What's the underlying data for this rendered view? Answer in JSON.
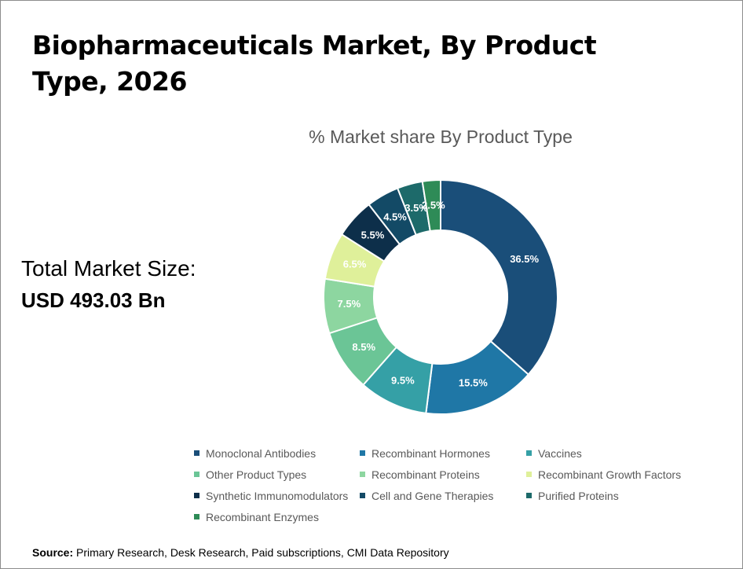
{
  "header": {
    "title": "Biopharmaceuticals Market, By Product Type, 2026"
  },
  "summary": {
    "total_label": "Total Market Size:",
    "total_value": "USD 493.03 Bn"
  },
  "footer": {
    "source_label": "Source:",
    "source_text": " Primary Research, Desk Research, Paid subscriptions, CMI Data Repository"
  },
  "chart_data": {
    "type": "pie",
    "subtitle": "% Market share By Product Type",
    "donut": true,
    "legend_position": "bottom",
    "categories": [
      "Monoclonal Antibodies",
      "Recombinant Hormones",
      "Vaccines",
      "Other Product Types",
      "Recombinant Proteins",
      "Recombinant Growth Factors",
      "Synthetic Immunomodulators",
      "Cell and Gene Therapies",
      "Purified Proteins",
      "Recombinant Enzymes"
    ],
    "values": [
      36.5,
      15.5,
      9.5,
      8.5,
      7.5,
      6.5,
      5.5,
      4.5,
      3.5,
      2.5
    ],
    "labels": [
      "36.5%",
      "15.5%",
      "9.5%",
      "8.5%",
      "7.5%",
      "6.5%",
      "5.5%",
      "4.5%",
      "3.5%",
      "2.5%"
    ],
    "colors": [
      "#1a4e79",
      "#1f77a6",
      "#35a0a6",
      "#6bc596",
      "#8dd6a0",
      "#dff09a",
      "#0d2f4a",
      "#134a66",
      "#1d6a6a",
      "#2e8b57"
    ],
    "label_colors": [
      "#ffffff",
      "#ffffff",
      "#ffffff",
      "#ffffff",
      "#ffffff",
      "#ffffff",
      "#ffffff",
      "#ffffff",
      "#ffffff",
      "#ffffff"
    ]
  }
}
